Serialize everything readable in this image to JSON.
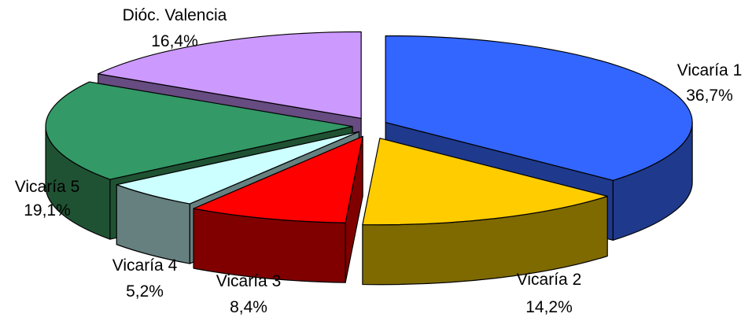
{
  "chart_data": {
    "type": "pie",
    "style": "3d-exploded",
    "categories": [
      "Vicaría 1",
      "Vicaría 2",
      "Vicaría 3",
      "Vicaría 4",
      "Vicaría 5",
      "Dióc. Valencia"
    ],
    "values": [
      36.7,
      14.2,
      8.4,
      5.2,
      19.1,
      16.4
    ],
    "value_labels": [
      "36,7%",
      "14,2%",
      "8,4%",
      "5,2%",
      "19,1%",
      "16,4%"
    ],
    "colors": [
      "#3366FF",
      "#FFCC00",
      "#FF0000",
      "#CCFFFF",
      "#339966",
      "#CC99FF"
    ],
    "side_colors": [
      "#1F3A8C",
      "#7F6A00",
      "#800000",
      "#668080",
      "#1F5233",
      "#664C80"
    ],
    "start_angle": "12 o'clock",
    "direction": "clockwise",
    "title": "",
    "legend": "none"
  }
}
